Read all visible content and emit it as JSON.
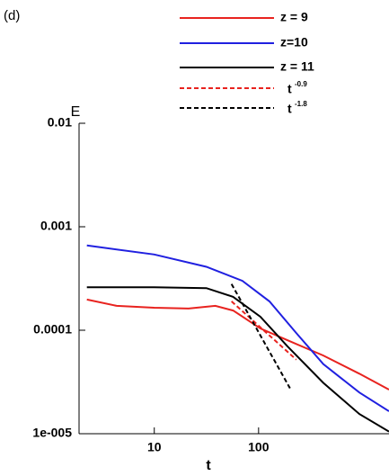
{
  "chart_data": {
    "type": "line",
    "panel_label": "(d)",
    "xlabel": "t",
    "ylabel": "E",
    "xscale": "log",
    "yscale": "log",
    "xlim": [
      1.9,
      1780
    ],
    "ylim": [
      1e-05,
      0.01
    ],
    "xticks": [
      10,
      100
    ],
    "yticks": [
      0.01,
      0.001,
      0.0001,
      {
        "value": 1e-05,
        "label": "1e-005"
      }
    ],
    "legend": "top-right",
    "series": [
      {
        "name": "z = 9",
        "color": "#e8231f",
        "dash": false,
        "x": [
          2.26,
          4.35,
          10,
          21.3,
          38.5,
          57,
          104,
          189,
          418,
          925,
          1780
        ],
        "values": [
          0.000198,
          0.000172,
          0.000165,
          0.000162,
          0.000172,
          0.000155,
          0.000104,
          8e-05,
          5.7e-05,
          3.8e-05,
          2.67e-05
        ]
      },
      {
        "name": "z=10",
        "color": "#2020e0",
        "dash": false,
        "x": [
          2.26,
          10,
          31.6,
          70,
          127,
          230,
          418,
          925,
          1780
        ],
        "values": [
          0.00066,
          0.00054,
          0.00041,
          0.0003,
          0.00019,
          9.4e-05,
          4.7e-05,
          2.5e-05,
          1.65e-05
        ]
      },
      {
        "name": "z = 11",
        "color": "#000000",
        "dash": false,
        "x": [
          2.26,
          10,
          31.6,
          57,
          104,
          189,
          418,
          925,
          1780
        ],
        "values": [
          0.00026,
          0.00026,
          0.000255,
          0.00021,
          0.000135,
          7e-05,
          3.1e-05,
          1.55e-05,
          1.05e-05
        ]
      },
      {
        "name": "t",
        "exponent": "-0.9",
        "color": "#e8231f",
        "dash": true,
        "x": [
          55,
          230
        ],
        "values": [
          0.00019,
          5.2e-05
        ]
      },
      {
        "name": "t",
        "exponent": "-1.8",
        "color": "#000000",
        "dash": true,
        "x": [
          55,
          200
        ],
        "values": [
          0.00028,
          2.75e-05
        ]
      }
    ]
  }
}
